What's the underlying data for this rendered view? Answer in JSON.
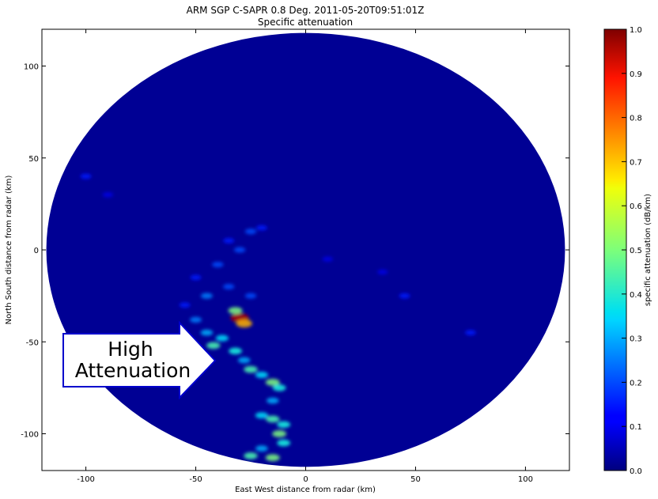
{
  "chart_data": {
    "type": "heatmap",
    "title": "ARM SGP C-SAPR 0.8 Deg. 2011-05-20T09:51:01Z",
    "subtitle": "Specific attenuation",
    "xlabel": "East West distance from radar (km)",
    "ylabel": "North South distance from radar (km)",
    "xlim": [
      -120,
      120
    ],
    "ylim": [
      -120,
      120
    ],
    "x_ticks": [
      -100,
      -50,
      0,
      50,
      100
    ],
    "y_ticks": [
      -100,
      -50,
      0,
      50,
      100
    ],
    "radar_range_km": 118,
    "grid": false,
    "colorscale": "jet",
    "colorbar": {
      "label": "specific attenuation (dB/km)",
      "range": [
        0.0,
        1.0
      ],
      "ticks": [
        "0.0",
        "0.1",
        "0.2",
        "0.3",
        "0.4",
        "0.5",
        "0.6",
        "0.7",
        "0.8",
        "0.9",
        "1.0"
      ],
      "placement": "right"
    },
    "background_value": 0.0,
    "features": [
      {
        "x": -100,
        "y": 40,
        "value": 0.15
      },
      {
        "x": -90,
        "y": 30,
        "value": 0.1
      },
      {
        "x": -35,
        "y": 5,
        "value": 0.15
      },
      {
        "x": -25,
        "y": 10,
        "value": 0.2
      },
      {
        "x": -20,
        "y": 12,
        "value": 0.15
      },
      {
        "x": -30,
        "y": 0,
        "value": 0.2
      },
      {
        "x": -40,
        "y": -8,
        "value": 0.2
      },
      {
        "x": -50,
        "y": -15,
        "value": 0.15
      },
      {
        "x": -45,
        "y": -25,
        "value": 0.25
      },
      {
        "x": -35,
        "y": -20,
        "value": 0.2
      },
      {
        "x": -25,
        "y": -25,
        "value": 0.2
      },
      {
        "x": -55,
        "y": -30,
        "value": 0.15
      },
      {
        "x": -50,
        "y": -38,
        "value": 0.25
      },
      {
        "x": -30,
        "y": -37,
        "value": 0.95
      },
      {
        "x": -28,
        "y": -40,
        "value": 0.7
      },
      {
        "x": -32,
        "y": -33,
        "value": 0.5
      },
      {
        "x": -45,
        "y": -45,
        "value": 0.3
      },
      {
        "x": -42,
        "y": -52,
        "value": 0.45
      },
      {
        "x": -38,
        "y": -48,
        "value": 0.35
      },
      {
        "x": -32,
        "y": -55,
        "value": 0.4
      },
      {
        "x": -28,
        "y": -60,
        "value": 0.3
      },
      {
        "x": -25,
        "y": -65,
        "value": 0.45
      },
      {
        "x": -20,
        "y": -68,
        "value": 0.35
      },
      {
        "x": -15,
        "y": -72,
        "value": 0.5
      },
      {
        "x": -12,
        "y": -75,
        "value": 0.4
      },
      {
        "x": -15,
        "y": -82,
        "value": 0.3
      },
      {
        "x": -20,
        "y": -90,
        "value": 0.35
      },
      {
        "x": -15,
        "y": -92,
        "value": 0.45
      },
      {
        "x": -10,
        "y": -95,
        "value": 0.4
      },
      {
        "x": -12,
        "y": -100,
        "value": 0.5
      },
      {
        "x": -10,
        "y": -105,
        "value": 0.4
      },
      {
        "x": -20,
        "y": -108,
        "value": 0.3
      },
      {
        "x": -25,
        "y": -112,
        "value": 0.45
      },
      {
        "x": -15,
        "y": -113,
        "value": 0.5
      },
      {
        "x": 45,
        "y": -25,
        "value": 0.15
      },
      {
        "x": 75,
        "y": -45,
        "value": 0.15
      },
      {
        "x": 35,
        "y": -12,
        "value": 0.1
      },
      {
        "x": 10,
        "y": -5,
        "value": 0.1
      }
    ],
    "annotation": {
      "text_line1": "High",
      "text_line2": "Attenuation",
      "arrow_tip": {
        "x": -40,
        "y": -57
      }
    }
  }
}
